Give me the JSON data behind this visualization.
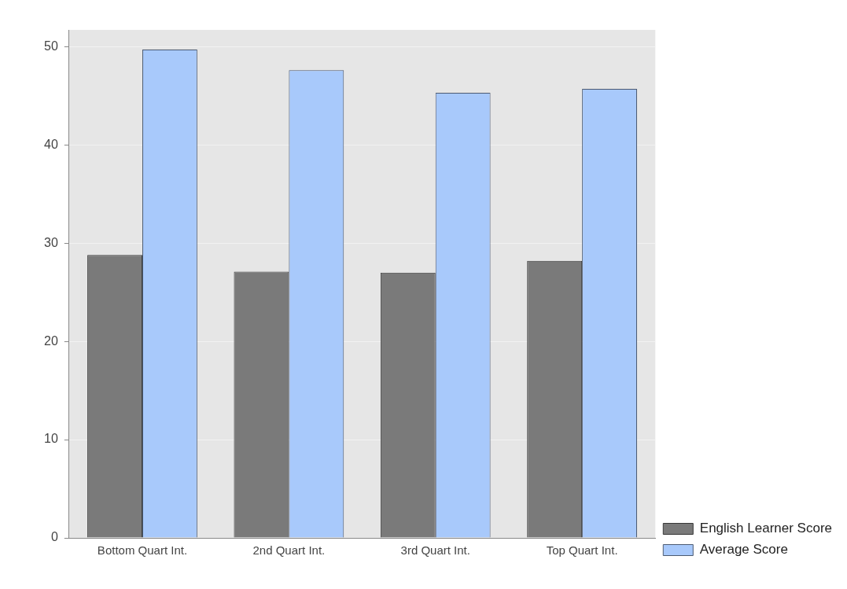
{
  "chart_data": {
    "type": "bar",
    "categories": [
      "Bottom Quart Int.",
      "2nd Quart Int.",
      "3rd Quart Int.",
      "Top Quart Int."
    ],
    "series": [
      {
        "name": "English Learner Score",
        "color": "#7a7a7a",
        "values": [
          28.8,
          27.1,
          27.0,
          28.2
        ]
      },
      {
        "name": "Average Score",
        "color": "#a8c9fb",
        "values": [
          49.7,
          47.6,
          45.3,
          45.7
        ]
      }
    ],
    "ylim": [
      0,
      51.7
    ],
    "yticks": [
      0,
      10,
      20,
      30,
      40,
      50
    ],
    "grid": "y",
    "legend": "bottom right"
  }
}
